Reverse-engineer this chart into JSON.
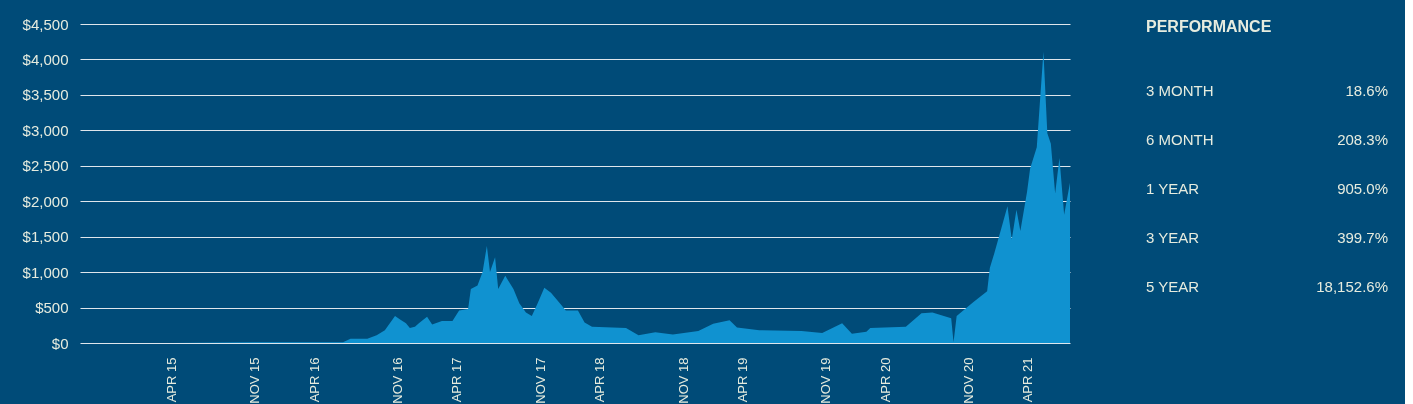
{
  "chart_data": [
    {
      "type": "area",
      "grid": "y",
      "color": "#1092d0",
      "xlim": [
        "2014-08-11",
        "2021-07-18"
      ],
      "xticks": [
        {
          "value": "2015-04-01",
          "label": "APR 15"
        },
        {
          "value": "2015-11-01",
          "label": "NOV 15"
        },
        {
          "value": "2016-04-01",
          "label": "APR 16"
        },
        {
          "value": "2016-11-01",
          "label": "NOV 16"
        },
        {
          "value": "2017-04-01",
          "label": "APR 17"
        },
        {
          "value": "2017-11-01",
          "label": "NOV 17"
        },
        {
          "value": "2018-04-01",
          "label": "APR 18"
        },
        {
          "value": "2018-11-01",
          "label": "NOV 18"
        },
        {
          "value": "2019-04-01",
          "label": "APR 19"
        },
        {
          "value": "2019-11-01",
          "label": "NOV 19"
        },
        {
          "value": "2020-04-01",
          "label": "APR 20"
        },
        {
          "value": "2020-11-01",
          "label": "NOV 20"
        },
        {
          "value": "2021-04-01",
          "label": "APR 21"
        }
      ],
      "ylim": [
        0,
        4500
      ],
      "yticks": [
        {
          "value": 0,
          "label": "$0"
        },
        {
          "value": 500,
          "label": "$500"
        },
        {
          "value": 1000,
          "label": "$1,000"
        },
        {
          "value": 1500,
          "label": "$1,500"
        },
        {
          "value": 2000,
          "label": "$2,000"
        },
        {
          "value": 2500,
          "label": "$2,500"
        },
        {
          "value": 3000,
          "label": "$3,000"
        },
        {
          "value": 3500,
          "label": "$3,500"
        },
        {
          "value": 4000,
          "label": "$4,000"
        },
        {
          "value": 4500,
          "label": "$4,500"
        }
      ],
      "x": [
        "2014-08-11",
        "2015-04-01",
        "2015-11-01",
        "2016-04-01",
        "2016-06-14",
        "2016-07-03",
        "2016-08-15",
        "2016-09-08",
        "2016-09-29",
        "2016-10-25",
        "2016-11-07",
        "2016-11-22",
        "2016-12-02",
        "2016-12-15",
        "2016-12-25",
        "2017-01-15",
        "2017-01-28",
        "2017-02-22",
        "2017-03-21",
        "2017-04-07",
        "2017-04-30",
        "2017-05-07",
        "2017-05-24",
        "2017-06-06",
        "2017-06-17",
        "2017-06-25",
        "2017-07-08",
        "2017-07-16",
        "2017-08-03",
        "2017-08-24",
        "2017-09-08",
        "2017-09-25",
        "2017-10-10",
        "2017-10-25",
        "2017-11-11",
        "2017-11-28",
        "2017-12-18",
        "2018-01-05",
        "2018-02-05",
        "2018-02-22",
        "2018-03-13",
        "2018-06-08",
        "2018-07-10",
        "2018-08-22",
        "2018-10-06",
        "2018-12-10",
        "2019-01-17",
        "2019-02-28",
        "2019-03-19",
        "2019-05-15",
        "2019-08-31",
        "2019-10-23",
        "2019-12-13",
        "2020-01-07",
        "2020-02-13",
        "2020-02-23",
        "2020-05-24",
        "2020-07-03",
        "2020-07-31",
        "2020-09-17",
        "2020-09-23",
        "2020-10-01",
        "2020-11-13",
        "2020-12-18",
        "2020-12-25",
        "2021-01-05",
        "2021-01-28",
        "2021-02-08",
        "2021-02-19",
        "2021-03-03",
        "2021-03-13",
        "2021-03-30",
        "2021-04-07",
        "2021-04-24",
        "2021-05-11",
        "2021-05-21",
        "2021-05-30",
        "2021-06-10",
        "2021-06-21",
        "2021-07-03",
        "2021-07-18"
      ],
      "values": [
        0,
        0,
        10,
        10,
        10,
        60,
        60,
        110,
        180,
        380,
        330,
        280,
        210,
        230,
        280,
        370,
        260,
        310,
        310,
        460,
        480,
        760,
        810,
        1000,
        1370,
        1000,
        1210,
        760,
        950,
        760,
        560,
        430,
        380,
        560,
        780,
        710,
        580,
        460,
        460,
        290,
        230,
        210,
        110,
        150,
        120,
        170,
        270,
        320,
        220,
        180,
        170,
        140,
        280,
        130,
        160,
        210,
        230,
        420,
        430,
        350,
        10,
        380,
        580,
        730,
        1060,
        1260,
        1710,
        1930,
        1460,
        1880,
        1580,
        2130,
        2460,
        2760,
        4110,
        2960,
        2810,
        2110,
        2610,
        1810,
        2260
      ]
    },
    {
      "type": "other",
      "title": "PERFORMANCE",
      "annotations": [
        "3 MONTH",
        "18.6%",
        "6 MONTH",
        "208.3%",
        "1 YEAR",
        "905.0%",
        "3 YEAR",
        "399.7%",
        "5 YEAR",
        "18,152.6%"
      ]
    }
  ]
}
